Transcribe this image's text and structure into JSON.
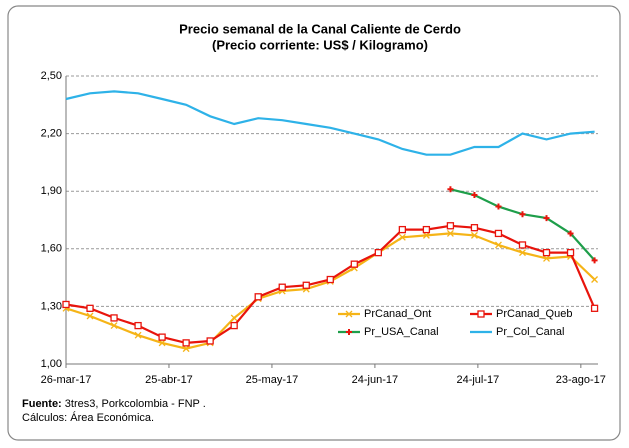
{
  "chart_data": {
    "type": "line",
    "title": "Precio semanal de la Canal Caliente de Cerdo",
    "subtitle": "(Precio corriente: US$ / Kilogramo)",
    "x": [
      "2017-03-26",
      "2017-04-02",
      "2017-04-09",
      "2017-04-16",
      "2017-04-23",
      "2017-04-30",
      "2017-05-07",
      "2017-05-14",
      "2017-05-21",
      "2017-05-28",
      "2017-06-04",
      "2017-06-11",
      "2017-06-18",
      "2017-06-25",
      "2017-07-02",
      "2017-07-09",
      "2017-07-16",
      "2017-07-23",
      "2017-07-30",
      "2017-08-06",
      "2017-08-13",
      "2017-08-20",
      "2017-08-27"
    ],
    "xlim": [
      "2017-03-26",
      "2017-08-28"
    ],
    "xticks": [
      {
        "value": "2017-03-26",
        "label": "26-mar-17"
      },
      {
        "value": "2017-04-25",
        "label": "25-abr-17"
      },
      {
        "value": "2017-05-25",
        "label": "25-may-17"
      },
      {
        "value": "2017-06-24",
        "label": "24-jun-17"
      },
      {
        "value": "2017-07-24",
        "label": "24-jul-17"
      },
      {
        "value": "2017-08-23",
        "label": "23-ago-17"
      }
    ],
    "ylim": [
      1.0,
      2.5
    ],
    "yticks": [
      {
        "value": 1.0,
        "label": "1,00"
      },
      {
        "value": 1.3,
        "label": "1,30"
      },
      {
        "value": 1.6,
        "label": "1,60"
      },
      {
        "value": 1.9,
        "label": "1,90"
      },
      {
        "value": 2.2,
        "label": "2,20"
      },
      {
        "value": 2.5,
        "label": "2,50"
      }
    ],
    "grid": true,
    "series": [
      {
        "name": "PrCanad_Ont",
        "color": "#f5b417",
        "marker": "x",
        "values": [
          1.29,
          1.25,
          1.2,
          1.15,
          1.11,
          1.08,
          1.11,
          1.24,
          1.34,
          1.38,
          1.39,
          1.43,
          1.5,
          1.58,
          1.66,
          1.67,
          1.68,
          1.67,
          1.62,
          1.58,
          1.55,
          1.56,
          1.44
        ]
      },
      {
        "name": "PrCanad_Queb",
        "color": "#e8140c",
        "marker": "square",
        "values": [
          1.31,
          1.29,
          1.24,
          1.2,
          1.14,
          1.11,
          1.12,
          1.2,
          1.35,
          1.4,
          1.41,
          1.44,
          1.52,
          1.58,
          1.7,
          1.7,
          1.72,
          1.71,
          1.68,
          1.62,
          1.58,
          1.58,
          1.29
        ]
      },
      {
        "name": "Pr_USA_Canal",
        "color": "#1e9e4a",
        "marker": "plus",
        "values": [
          null,
          null,
          null,
          null,
          null,
          null,
          null,
          null,
          null,
          null,
          null,
          null,
          null,
          null,
          null,
          null,
          1.91,
          1.88,
          1.82,
          1.78,
          1.76,
          1.68,
          1.54
        ]
      },
      {
        "name": "Pr_Col_Canal",
        "color": "#2eb2e8",
        "marker": "none",
        "values": [
          2.38,
          2.41,
          2.42,
          2.41,
          2.38,
          2.35,
          2.29,
          2.25,
          2.28,
          2.27,
          2.25,
          2.23,
          2.2,
          2.17,
          2.12,
          2.09,
          2.09,
          2.13,
          2.13,
          2.2,
          2.17,
          2.2,
          2.21
        ]
      }
    ],
    "source_label": "Fuente:",
    "source": "3tres3, Porkcolombia - FNP .",
    "notes": "Cálculos: Área Económica."
  }
}
